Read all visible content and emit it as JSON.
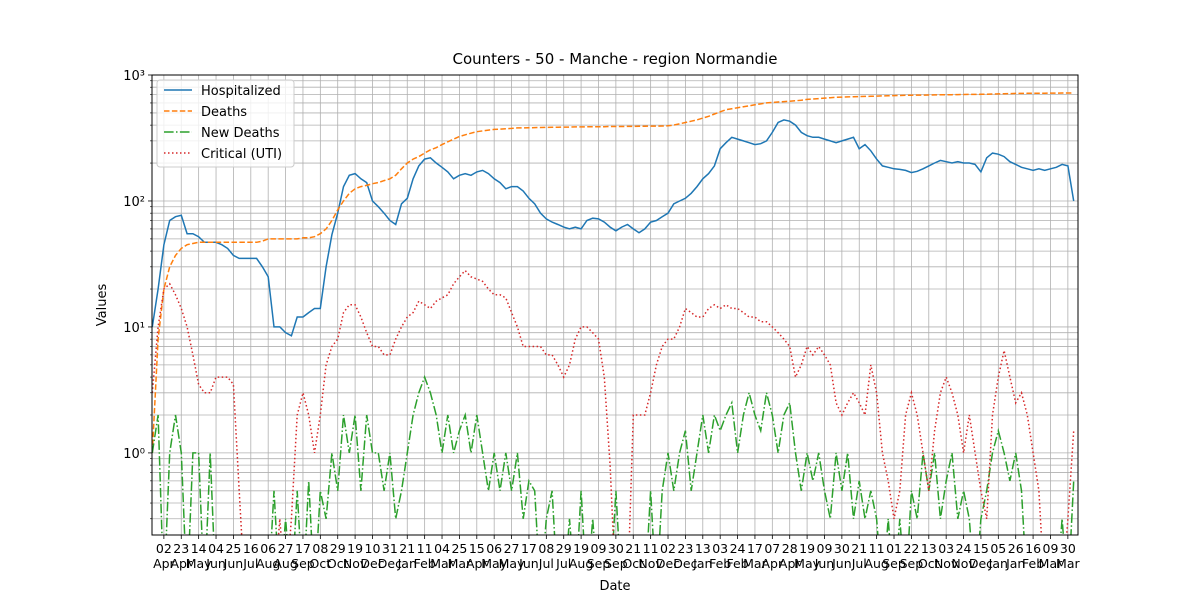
{
  "chart_data": {
    "type": "line",
    "title": "Counters - 50 - Manche - region Normandie",
    "x_label": "Date",
    "y_label": "Values",
    "log_scale_y": true,
    "grid": true,
    "legend_loc": "upper left",
    "ylim": [
      0.223,
      1000
    ],
    "yticks": [
      {
        "value": 1,
        "label": "10⁰"
      },
      {
        "value": 10,
        "label": "10¹"
      },
      {
        "value": 100,
        "label": "10²"
      },
      {
        "value": 1000,
        "label": "10³"
      }
    ],
    "yminor_ticks": [
      0.3,
      0.4,
      0.5,
      0.6,
      0.7,
      0.8,
      0.9,
      2,
      3,
      4,
      5,
      6,
      7,
      8,
      9,
      20,
      30,
      40,
      50,
      60,
      70,
      80,
      90,
      200,
      300,
      400,
      500,
      600,
      700,
      800,
      900
    ],
    "categories": [
      null,
      null,
      "02\nApr",
      null,
      null,
      "23\nApr",
      null,
      null,
      "14\nMay",
      null,
      null,
      "04\nJun",
      null,
      null,
      "25\nJun",
      null,
      null,
      "16\nJul",
      null,
      null,
      "06\nAug",
      null,
      null,
      "27\nAug",
      null,
      null,
      "17\nSep",
      null,
      null,
      "08\nOct",
      null,
      null,
      "29\nOct",
      null,
      null,
      "19\nNov",
      null,
      null,
      "10\nDec",
      null,
      null,
      "31\nDec",
      null,
      null,
      "21\nJan",
      null,
      null,
      "11\nFeb",
      null,
      null,
      "04\nMar",
      null,
      null,
      "25\nMar",
      null,
      null,
      "15\nApr",
      null,
      null,
      "06\nMay",
      null,
      null,
      "27\nMay",
      null,
      null,
      "17\nJun",
      null,
      null,
      "08\nJul",
      null,
      null,
      "29\nJul",
      null,
      null,
      "19\nAug",
      null,
      null,
      "09\nSep",
      null,
      null,
      "30\nSep",
      null,
      null,
      "21\nOct",
      null,
      null,
      "11\nNov",
      null,
      null,
      "02\nDec",
      null,
      null,
      "23\nDec",
      null,
      null,
      "13\nJan",
      null,
      null,
      "03\nFeb",
      null,
      null,
      "24\nFeb",
      null,
      null,
      "17\nMar",
      null,
      null,
      "07\nApr",
      null,
      null,
      "28\nApr",
      null,
      null,
      "19\nMay",
      null,
      null,
      "09\nJun",
      null,
      null,
      "30\nJun",
      null,
      null,
      "21\nJul",
      null,
      null,
      "11\nAug",
      null,
      null,
      "01\nSep",
      null,
      null,
      "22\nSep",
      null,
      null,
      "13\nOct",
      null,
      null,
      "03\nNov",
      null,
      null,
      "24\nNov",
      null,
      null,
      "15\nDec",
      null,
      null,
      "05\nJan",
      null,
      null,
      "26\nJan",
      null,
      null,
      "16\nFeb",
      null,
      null,
      "09\nMar",
      null,
      null,
      "30\nMar",
      null
    ],
    "series": [
      {
        "name": "Hospitalized",
        "color": "#1f77b4",
        "linestyle": "solid",
        "values": [
          10,
          20,
          45,
          70,
          75,
          77,
          55,
          55,
          52,
          47,
          47,
          47,
          45,
          42,
          37,
          35,
          35,
          35,
          35,
          30,
          25,
          10,
          10,
          9,
          8.5,
          12,
          12,
          13,
          14,
          14,
          30,
          54,
          80,
          130,
          160,
          165,
          150,
          140,
          100,
          90,
          80,
          70,
          65,
          95,
          105,
          150,
          190,
          215,
          220,
          200,
          185,
          170,
          150,
          160,
          165,
          160,
          170,
          175,
          165,
          150,
          140,
          125,
          130,
          130,
          120,
          105,
          95,
          80,
          72,
          68,
          65,
          62,
          60,
          62,
          60,
          70,
          73,
          72,
          68,
          62,
          58,
          62,
          65,
          60,
          56,
          60,
          68,
          70,
          75,
          80,
          95,
          100,
          105,
          115,
          130,
          150,
          165,
          190,
          260,
          290,
          320,
          310,
          300,
          290,
          280,
          285,
          300,
          350,
          420,
          440,
          430,
          400,
          350,
          330,
          320,
          320,
          310,
          300,
          290,
          300,
          310,
          320,
          260,
          280,
          250,
          215,
          190,
          185,
          180,
          178,
          175,
          168,
          172,
          180,
          190,
          200,
          210,
          205,
          200,
          205,
          200,
          200,
          195,
          170,
          220,
          240,
          235,
          225,
          205,
          195,
          185,
          180,
          175,
          180,
          175,
          180,
          185,
          195,
          190,
          100
        ]
      },
      {
        "name": "Deaths",
        "color": "#ff7f0e",
        "linestyle": "dashed",
        "values": [
          1,
          8,
          20,
          30,
          37,
          42,
          45,
          46,
          47,
          47,
          47,
          47,
          47,
          47,
          47,
          47,
          47,
          47,
          47,
          48,
          50,
          50,
          50,
          50,
          50,
          50,
          51,
          51,
          52,
          55,
          60,
          70,
          85,
          100,
          115,
          125,
          130,
          133,
          137,
          140,
          145,
          150,
          160,
          180,
          200,
          215,
          225,
          240,
          255,
          265,
          280,
          295,
          310,
          325,
          335,
          345,
          355,
          360,
          365,
          370,
          372,
          375,
          377,
          380,
          380,
          381,
          382,
          383,
          384,
          385,
          385,
          386,
          386,
          387,
          387,
          388,
          388,
          389,
          389,
          390,
          390,
          390,
          391,
          391,
          392,
          392,
          393,
          393,
          394,
          395,
          400,
          410,
          420,
          430,
          440,
          455,
          470,
          490,
          510,
          530,
          540,
          550,
          560,
          570,
          580,
          590,
          600,
          605,
          610,
          615,
          620,
          625,
          630,
          640,
          645,
          650,
          655,
          660,
          665,
          668,
          670,
          672,
          674,
          676,
          678,
          680,
          682,
          684,
          686,
          688,
          690,
          691,
          692,
          693,
          694,
          695,
          696,
          697,
          698,
          699,
          700,
          701,
          702,
          703,
          704,
          706,
          708,
          710,
          712,
          714,
          715,
          716,
          716,
          717,
          717,
          718,
          718,
          719,
          719,
          720
        ]
      },
      {
        "name": "New Deaths",
        "color": "#2ca02c",
        "linestyle": "dashdot",
        "values": [
          1,
          2,
          0,
          1,
          2,
          1,
          0,
          1,
          1,
          0,
          1,
          0,
          0,
          0,
          0,
          0,
          0,
          0,
          0,
          0,
          0,
          0.5,
          0,
          0.3,
          0,
          0.5,
          0,
          0.6,
          0,
          0.5,
          0.3,
          1,
          0.5,
          2,
          1,
          2,
          0.5,
          2,
          1,
          1,
          0.5,
          1,
          0.3,
          0.5,
          1,
          2,
          3,
          4,
          3,
          2,
          1,
          2,
          1,
          1.5,
          2,
          1,
          2,
          1,
          0.5,
          1,
          0.5,
          1,
          0.5,
          1,
          0.3,
          0.6,
          0.5,
          0,
          0.3,
          0.5,
          0,
          0,
          0.3,
          0,
          0.5,
          0,
          0.3,
          0,
          0,
          0,
          0.5,
          0,
          0,
          0,
          0,
          0,
          0.5,
          0,
          0.5,
          1,
          0.5,
          1,
          1.5,
          0.5,
          1,
          2,
          1,
          2,
          1.5,
          2,
          2.5,
          1,
          2,
          3,
          2,
          1.5,
          3,
          2,
          1,
          2,
          2.5,
          1,
          0.5,
          1,
          0.6,
          1,
          0.5,
          0.3,
          1,
          0.5,
          1,
          0.3,
          0.6,
          0.3,
          0.5,
          0.3,
          0,
          0.3,
          0,
          0.3,
          0,
          0.5,
          0.3,
          1,
          0.5,
          1,
          0.3,
          0.6,
          1,
          0.3,
          0.5,
          0.3,
          0,
          0.3,
          0.5,
          1,
          1.5,
          1,
          0.6,
          1,
          0.5,
          0,
          0,
          0,
          0,
          0,
          0,
          0.3,
          0,
          0.6
        ]
      },
      {
        "name": "Critical (UTI)",
        "color": "#d62728",
        "linestyle": "dotted",
        "values": [
          3,
          10,
          20,
          22,
          18,
          14,
          10,
          6,
          3.5,
          3,
          3,
          4,
          4,
          4,
          3.5,
          0.5,
          0,
          0,
          0,
          0,
          0,
          0,
          0.3,
          0,
          0.3,
          2,
          3,
          2,
          1,
          2,
          5,
          7,
          8,
          13,
          15,
          15,
          12,
          9,
          7,
          7,
          6,
          6,
          8,
          10,
          12,
          13,
          16,
          15,
          14,
          16,
          17,
          18,
          22,
          25,
          28,
          25,
          24,
          23,
          20,
          18,
          18,
          17,
          13,
          10,
          7,
          7,
          7,
          7,
          6,
          6,
          5,
          4,
          5,
          8,
          10,
          10,
          9,
          8,
          4,
          0.8,
          0,
          0,
          0,
          2,
          2,
          2,
          3,
          5,
          7,
          8,
          8,
          10,
          14,
          13,
          12,
          12,
          14,
          15,
          14,
          15,
          14,
          14,
          13,
          12,
          12,
          11,
          11,
          10,
          9,
          8,
          7,
          4,
          5,
          7,
          6,
          7,
          6,
          5,
          2.5,
          2,
          2.5,
          3,
          2.5,
          2,
          5,
          3,
          1,
          0.6,
          0.3,
          0.5,
          2,
          3,
          2,
          1,
          0.5,
          1.5,
          3,
          4,
          3,
          2,
          1,
          2,
          1,
          0.5,
          0.3,
          2,
          4,
          6.5,
          4,
          2.5,
          3,
          2,
          1,
          0.5,
          0,
          0,
          0,
          0,
          0.3,
          1.5
        ]
      }
    ]
  }
}
